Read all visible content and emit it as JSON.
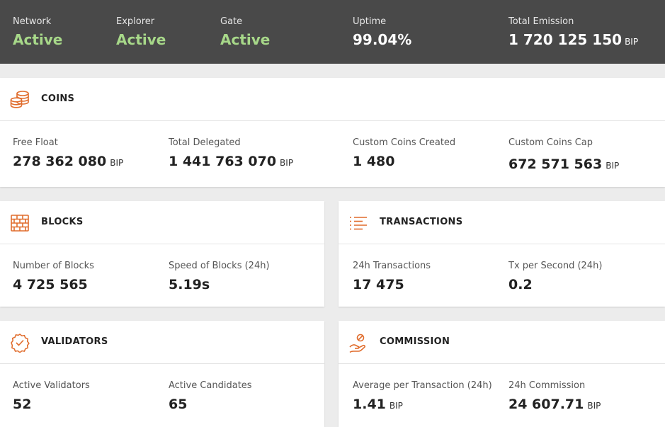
{
  "status_bar": {
    "network": {
      "label": "Network",
      "value": "Active"
    },
    "explorer": {
      "label": "Explorer",
      "value": "Active"
    },
    "gate": {
      "label": "Gate",
      "value": "Active"
    },
    "uptime": {
      "label": "Uptime",
      "value": "99.04%"
    },
    "total_emission": {
      "label": "Total Emission",
      "value": "1 720 125 150",
      "unit": "BIP"
    }
  },
  "coins": {
    "title": "COINS",
    "icon": "coins-stack-icon",
    "free_float": {
      "label": "Free Float",
      "value": "278 362 080",
      "unit": "BIP"
    },
    "total_delegated": {
      "label": "Total Delegated",
      "value": "1 441 763 070",
      "unit": "BIP"
    },
    "custom_coins_created": {
      "label": "Custom Coins Created",
      "value": "1 480"
    },
    "custom_coins_cap": {
      "label": "Custom Coins Cap",
      "value": "672 571 563",
      "unit": "BIP"
    }
  },
  "blocks": {
    "title": "BLOCKS",
    "icon": "brick-wall-icon",
    "number_of_blocks": {
      "label": "Number of Blocks",
      "value": "4 725 565"
    },
    "speed_of_blocks": {
      "label": "Speed of Blocks (24h)",
      "value": "5.19s"
    }
  },
  "transactions": {
    "title": "TRANSACTIONS",
    "icon": "list-icon",
    "tx_24h": {
      "label": "24h Transactions",
      "value": "17 475"
    },
    "tx_per_second": {
      "label": "Tx per Second (24h)",
      "value": "0.2"
    }
  },
  "validators": {
    "title": "VALIDATORS",
    "icon": "check-badge-icon",
    "active_validators": {
      "label": "Active Validators",
      "value": "52"
    },
    "active_candidates": {
      "label": "Active Candidates",
      "value": "65"
    }
  },
  "commission": {
    "title": "COMMISSION",
    "icon": "hand-coin-icon",
    "avg_per_tx": {
      "label": "Average per Transaction (24h)",
      "value": "1.41",
      "unit": "BIP"
    },
    "commission_24h": {
      "label": "24h Commission",
      "value": "24 607.71",
      "unit": "BIP"
    }
  },
  "colors": {
    "accent": "#e06c2c",
    "status_bg": "#494949",
    "active_green": "#a7d889"
  }
}
